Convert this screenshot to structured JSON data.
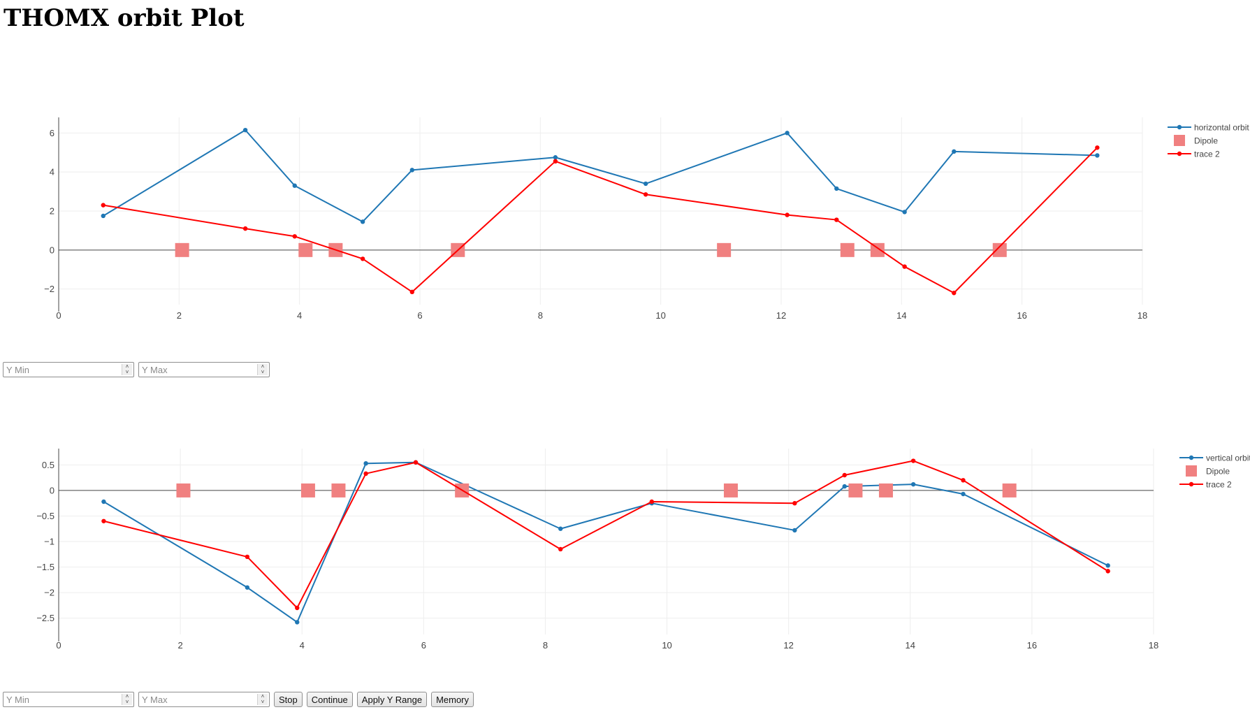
{
  "page": {
    "title": "THOMX orbit Plot"
  },
  "controls": {
    "ymin_placeholder": "Y Min",
    "ymax_placeholder": "Y Max",
    "stop_label": "Stop",
    "continue_label": "Continue",
    "apply_label": "Apply Y Range",
    "memory_label": "Memory"
  },
  "colors": {
    "blue": "#1f77b4",
    "red": "#ff0000",
    "dipole": "#f08080"
  },
  "chart_data": [
    {
      "type": "line",
      "xlim": [
        0,
        18
      ],
      "ylim": [
        -2.8,
        6.8
      ],
      "xticks": [
        0,
        2,
        4,
        6,
        8,
        10,
        12,
        14,
        16,
        18
      ],
      "yticks": [
        -2,
        0,
        2,
        4,
        6
      ],
      "grid": true,
      "legend_position": "top-right",
      "series": [
        {
          "name": "horizontal orbit",
          "color": "#1f77b4",
          "mode": "lines+markers",
          "x": [
            0.74,
            3.1,
            3.92,
            5.05,
            5.87,
            8.25,
            9.75,
            12.1,
            12.92,
            14.05,
            14.87,
            17.25
          ],
          "y": [
            1.75,
            6.15,
            3.3,
            1.45,
            4.1,
            4.75,
            3.4,
            6.0,
            3.15,
            1.95,
            5.05,
            4.85
          ]
        },
        {
          "name": "Dipole",
          "color": "#f08080",
          "mode": "markers",
          "x": [
            2.05,
            4.1,
            4.6,
            6.63,
            11.05,
            13.1,
            13.6,
            15.63
          ],
          "y": [
            0,
            0,
            0,
            0,
            0,
            0,
            0,
            0
          ]
        },
        {
          "name": "trace 2",
          "color": "#ff0000",
          "mode": "lines+markers",
          "x": [
            0.74,
            3.1,
            3.92,
            5.05,
            5.87,
            8.25,
            9.75,
            12.1,
            12.92,
            14.05,
            14.87,
            17.25
          ],
          "y": [
            2.3,
            1.1,
            0.7,
            -0.45,
            -2.15,
            4.55,
            2.85,
            1.8,
            1.55,
            -0.85,
            -2.2,
            5.25
          ]
        }
      ]
    },
    {
      "type": "line",
      "xlim": [
        0,
        18
      ],
      "ylim": [
        -2.82,
        0.82
      ],
      "xticks": [
        0,
        2,
        4,
        6,
        8,
        10,
        12,
        14,
        16,
        18
      ],
      "yticks": [
        -2.5,
        -2,
        -1.5,
        -1,
        -0.5,
        0,
        0.5
      ],
      "grid": true,
      "legend_position": "top-right",
      "series": [
        {
          "name": "vertical orbit",
          "color": "#1f77b4",
          "mode": "lines+markers",
          "x": [
            0.74,
            3.1,
            3.92,
            5.05,
            5.87,
            8.25,
            9.75,
            12.1,
            12.92,
            14.05,
            14.87,
            17.25
          ],
          "y": [
            -0.22,
            -1.9,
            -2.58,
            0.53,
            0.55,
            -0.75,
            -0.25,
            -0.78,
            0.08,
            0.12,
            -0.07,
            -1.47
          ]
        },
        {
          "name": "Dipole",
          "color": "#f08080",
          "mode": "markers",
          "x": [
            2.05,
            4.1,
            4.6,
            6.63,
            11.05,
            13.1,
            13.6,
            15.63
          ],
          "y": [
            0,
            0,
            0,
            0,
            0,
            0,
            0,
            0
          ]
        },
        {
          "name": "trace 2",
          "color": "#ff0000",
          "mode": "lines+markers",
          "x": [
            0.74,
            3.1,
            3.92,
            5.05,
            5.87,
            8.25,
            9.75,
            12.1,
            12.92,
            14.05,
            14.87,
            17.25
          ],
          "y": [
            -0.6,
            -1.3,
            -2.3,
            0.33,
            0.55,
            -1.15,
            -0.22,
            -0.25,
            0.3,
            0.58,
            0.2,
            -1.58
          ]
        }
      ]
    }
  ]
}
